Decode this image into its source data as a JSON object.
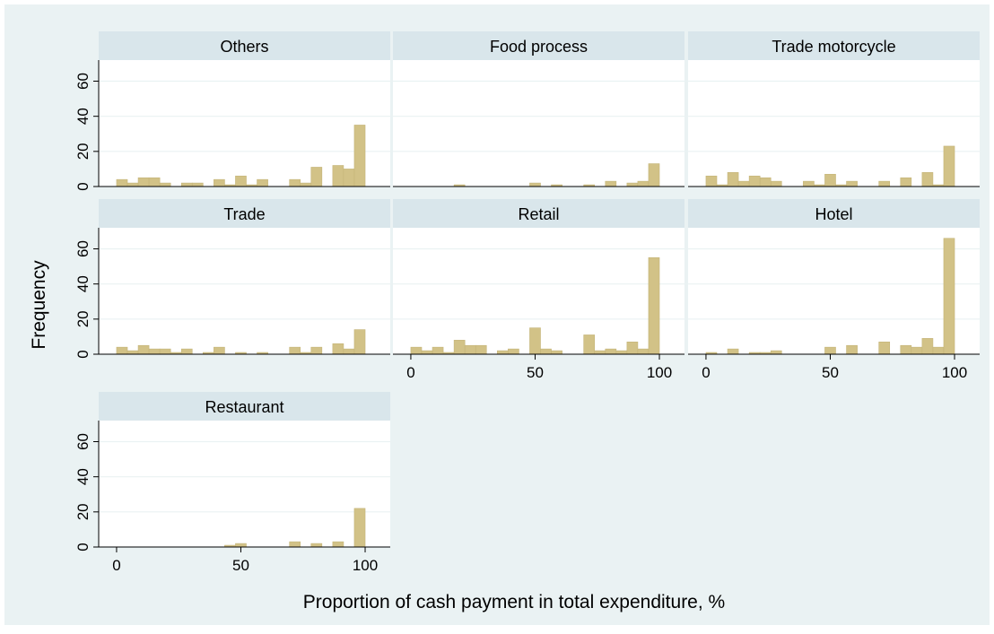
{
  "chart_data": {
    "type": "histogram",
    "xlabel": "Proportion of cash payment in total expenditure, %",
    "ylabel": "Frequency",
    "bins": [
      0,
      4.35,
      8.7,
      13.04,
      17.39,
      21.74,
      26.09,
      30.43,
      34.78,
      39.13,
      43.48,
      47.83,
      52.17,
      56.52,
      60.87,
      65.22,
      69.57,
      73.91,
      78.26,
      82.61,
      86.96,
      91.3,
      95.65,
      100
    ],
    "xlim": [
      -7.2,
      110.1
    ],
    "xticks": [
      0,
      50,
      100
    ],
    "ylim": [
      0,
      72
    ],
    "yticks": [
      0,
      20,
      40,
      60
    ],
    "color": "#d2c287",
    "grid": true,
    "panels": [
      {
        "title": "Others",
        "counts": [
          4,
          2,
          5,
          5,
          2,
          0,
          2,
          2,
          0,
          4,
          1,
          6,
          1,
          4,
          0,
          0,
          4,
          2,
          11,
          0,
          12,
          10,
          35
        ]
      },
      {
        "title": "Food process",
        "counts": [
          0,
          0,
          0,
          0,
          1,
          0,
          0,
          0,
          0,
          0,
          0,
          2,
          0,
          1,
          0,
          0,
          1,
          0,
          3,
          0,
          2,
          3,
          13
        ]
      },
      {
        "title": "Trade motorcycle",
        "counts": [
          6,
          1,
          8,
          3,
          6,
          5,
          3,
          0,
          0,
          3,
          1,
          7,
          1,
          3,
          0,
          0,
          3,
          0,
          5,
          0,
          8,
          1,
          23
        ]
      },
      {
        "title": "Trade",
        "counts": [
          4,
          2,
          5,
          3,
          3,
          1,
          3,
          0,
          1,
          4,
          0,
          1,
          0,
          1,
          0,
          0,
          4,
          1,
          4,
          0,
          6,
          3,
          14
        ]
      },
      {
        "title": "Retail",
        "counts": [
          4,
          2,
          4,
          1,
          8,
          5,
          5,
          0,
          2,
          3,
          0,
          15,
          3,
          2,
          0,
          0,
          11,
          2,
          3,
          2,
          7,
          3,
          55
        ]
      },
      {
        "title": "Hotel",
        "counts": [
          1,
          0,
          3,
          0,
          1,
          1,
          2,
          0,
          0,
          0,
          0,
          4,
          0,
          5,
          0,
          0,
          7,
          0,
          5,
          4,
          9,
          4,
          66
        ]
      },
      {
        "title": "Restaurant",
        "counts": [
          0,
          0,
          0,
          0,
          0,
          0,
          0,
          0,
          0,
          0,
          1,
          2,
          0,
          0,
          0,
          0,
          3,
          0,
          2,
          0,
          3,
          0,
          22
        ]
      }
    ]
  }
}
